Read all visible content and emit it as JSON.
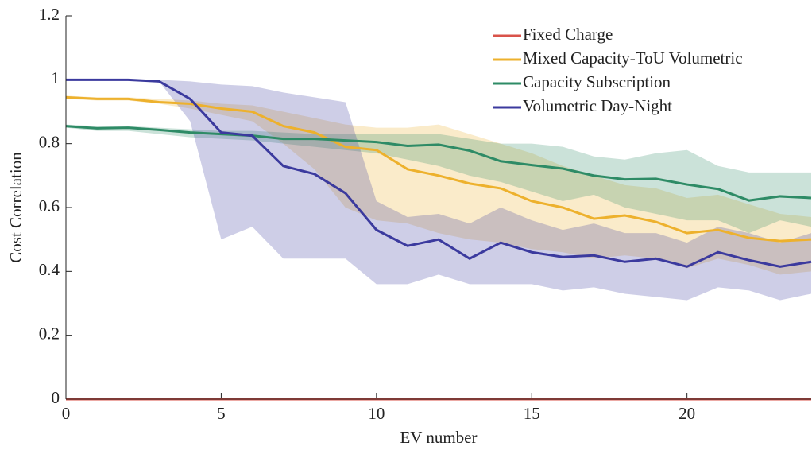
{
  "chart_data": {
    "type": "line",
    "xlabel": "EV number",
    "ylabel": "Cost Correlation",
    "x": [
      0,
      1,
      2,
      3,
      4,
      5,
      6,
      7,
      8,
      9,
      10,
      11,
      12,
      13,
      14,
      15,
      16,
      17,
      18,
      19,
      20,
      21,
      22,
      23,
      24
    ],
    "xlim": [
      0,
      24
    ],
    "ylim": [
      0,
      1.2
    ],
    "xticks": [
      0,
      5,
      10,
      15,
      20
    ],
    "yticks": [
      0,
      0.2,
      0.4,
      0.6,
      0.8,
      1,
      1.2
    ],
    "legend": "upper right",
    "series": [
      {
        "name": "Fixed Charge",
        "color": "#d9534a",
        "values": [
          0,
          0,
          0,
          0,
          0,
          0,
          0,
          0,
          0,
          0,
          0,
          0,
          0,
          0,
          0,
          0,
          0,
          0,
          0,
          0,
          0,
          0,
          0,
          0,
          0
        ]
      },
      {
        "name": "Mixed Capacity-ToU Volumetric",
        "color": "#edb12d",
        "values": [
          0.945,
          0.94,
          0.94,
          0.93,
          0.925,
          0.91,
          0.9,
          0.855,
          0.835,
          0.79,
          0.78,
          0.72,
          0.7,
          0.675,
          0.66,
          0.62,
          0.6,
          0.565,
          0.575,
          0.555,
          0.52,
          0.53,
          0.505,
          0.495,
          0.5
        ],
        "upper": [
          0.95,
          0.945,
          0.945,
          0.94,
          0.935,
          0.925,
          0.92,
          0.9,
          0.88,
          0.86,
          0.85,
          0.85,
          0.86,
          0.83,
          0.8,
          0.77,
          0.73,
          0.7,
          0.67,
          0.66,
          0.63,
          0.64,
          0.61,
          0.58,
          0.57
        ],
        "lower": [
          0.94,
          0.935,
          0.935,
          0.925,
          0.91,
          0.89,
          0.87,
          0.8,
          0.72,
          0.6,
          0.56,
          0.55,
          0.52,
          0.5,
          0.49,
          0.47,
          0.46,
          0.44,
          0.45,
          0.44,
          0.41,
          0.44,
          0.42,
          0.39,
          0.4
        ]
      },
      {
        "name": "Capacity Subscription",
        "color": "#2e8b66",
        "values": [
          0.855,
          0.848,
          0.85,
          0.843,
          0.835,
          0.83,
          0.825,
          0.815,
          0.815,
          0.81,
          0.805,
          0.793,
          0.797,
          0.778,
          0.745,
          0.733,
          0.722,
          0.7,
          0.688,
          0.69,
          0.672,
          0.658,
          0.622,
          0.635,
          0.63
        ],
        "upper": [
          0.86,
          0.855,
          0.855,
          0.85,
          0.845,
          0.84,
          0.84,
          0.835,
          0.83,
          0.83,
          0.83,
          0.83,
          0.83,
          0.815,
          0.8,
          0.8,
          0.79,
          0.76,
          0.75,
          0.77,
          0.78,
          0.73,
          0.71,
          0.71,
          0.71
        ],
        "lower": [
          0.85,
          0.84,
          0.84,
          0.83,
          0.82,
          0.815,
          0.81,
          0.8,
          0.79,
          0.78,
          0.77,
          0.75,
          0.73,
          0.7,
          0.68,
          0.65,
          0.62,
          0.64,
          0.6,
          0.58,
          0.56,
          0.56,
          0.52,
          0.56,
          0.54
        ]
      },
      {
        "name": "Volumetric Day-Night",
        "color": "#3b3a9e",
        "values": [
          1,
          1,
          1,
          0.995,
          0.94,
          0.835,
          0.825,
          0.73,
          0.705,
          0.645,
          0.53,
          0.48,
          0.5,
          0.44,
          0.49,
          0.46,
          0.445,
          0.45,
          0.43,
          0.44,
          0.415,
          0.46,
          0.435,
          0.415,
          0.43
        ],
        "upper": [
          1,
          1,
          1,
          1,
          0.995,
          0.985,
          0.98,
          0.96,
          0.945,
          0.93,
          0.62,
          0.57,
          0.58,
          0.55,
          0.6,
          0.56,
          0.53,
          0.55,
          0.52,
          0.52,
          0.49,
          0.54,
          0.52,
          0.49,
          0.52
        ],
        "lower": [
          1,
          1,
          1,
          0.995,
          0.87,
          0.5,
          0.54,
          0.44,
          0.44,
          0.44,
          0.36,
          0.36,
          0.39,
          0.36,
          0.36,
          0.36,
          0.34,
          0.35,
          0.33,
          0.32,
          0.31,
          0.35,
          0.34,
          0.31,
          0.33
        ]
      }
    ]
  }
}
